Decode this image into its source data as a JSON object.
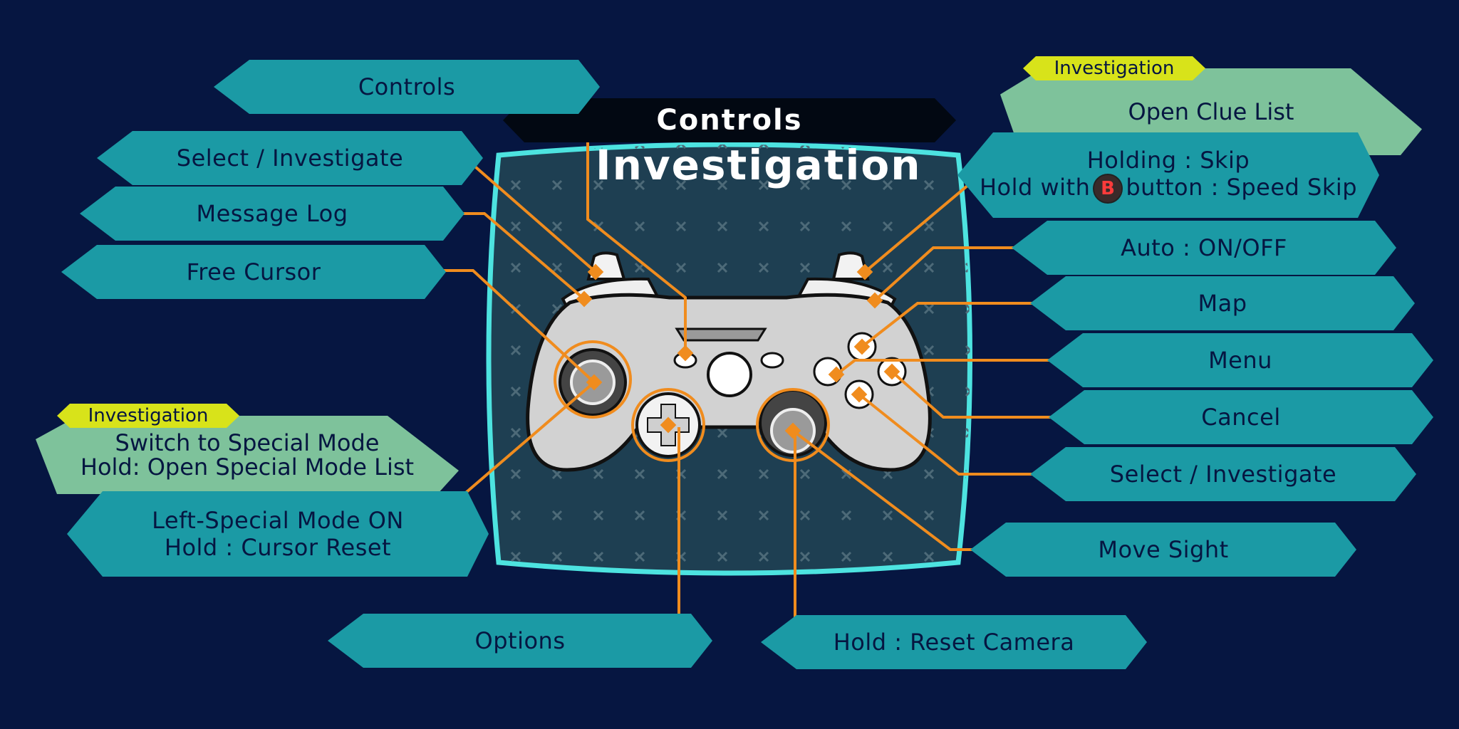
{
  "banner": {
    "label": "Controls"
  },
  "screen": {
    "title": "Investigation"
  },
  "labels": {
    "controls_btn": "Controls",
    "select_investigate_left": "Select / Investigate",
    "message_log": "Message Log",
    "free_cursor": "Free Cursor",
    "special_mode_tag": "Investigation",
    "switch_special_line1": "Switch to Special Mode",
    "switch_special_line2": "Hold: Open Special Mode List",
    "left_special_line1": "Left-Special Mode ON",
    "left_special_line2": "Hold : Cursor Reset",
    "options": "Options",
    "reset_camera": "Hold : Reset Camera",
    "clue_tag": "Investigation",
    "open_clue_list": "Open Clue List",
    "skip_line1": "Holding : Skip",
    "skip_line2_pre": "Hold with",
    "skip_line2_badge": "B",
    "skip_line2_post": "button : Speed Skip",
    "auto": "Auto : ON/OFF",
    "map": "Map",
    "menu": "Menu",
    "cancel": "Cancel",
    "select_investigate_right": "Select / Investigate",
    "move_sight": "Move Sight"
  },
  "colors": {
    "background": "#061641",
    "label_fill": "#1b9aa5",
    "mode_fill": "#7ec29b",
    "tag_fill": "#d8e31a",
    "leader_line": "#f08c1e",
    "screen_border": "#4de3e0",
    "screen_fill": "#1e3f52",
    "controller_body": "#d2d2d2"
  },
  "icons": {
    "b_button": "b-button-icon",
    "controller": "gamepad-icon",
    "pattern": "cross-pattern-icon"
  }
}
